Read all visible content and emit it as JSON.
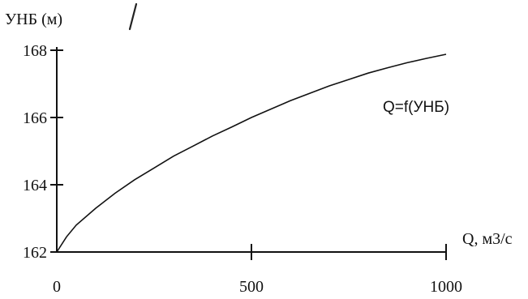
{
  "chart_data": {
    "type": "line",
    "title": "",
    "ylabel": "УНБ (м)",
    "xlabel": "Q, м3/с",
    "xlim": [
      0,
      1000
    ],
    "ylim": [
      162,
      168
    ],
    "x_ticks": [
      0,
      500,
      1000
    ],
    "y_ticks": [
      162,
      164,
      166,
      168
    ],
    "grid": false,
    "legend": "none",
    "line_color": "#111111",
    "series": [
      {
        "name": "Q=f(УНБ)",
        "x": [
          0,
          25,
          50,
          100,
          150,
          200,
          250,
          300,
          350,
          400,
          450,
          500,
          550,
          600,
          650,
          700,
          750,
          800,
          850,
          900,
          950,
          1000
        ],
        "y": [
          162.0,
          162.45,
          162.8,
          163.3,
          163.75,
          164.15,
          164.5,
          164.85,
          165.15,
          165.45,
          165.72,
          166.0,
          166.25,
          166.5,
          166.72,
          166.94,
          167.13,
          167.32,
          167.48,
          167.63,
          167.76,
          167.88
        ]
      }
    ]
  }
}
